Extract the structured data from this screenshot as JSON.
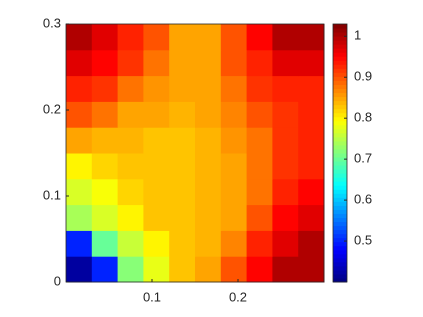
{
  "chart_data": {
    "type": "heatmap",
    "colormap": "jet",
    "xlim": [
      0,
      0.3
    ],
    "ylim": [
      0,
      0.3
    ],
    "xticks": [
      0.1,
      0.2
    ],
    "yticks": [
      0,
      0.1,
      0.2,
      0.3
    ],
    "clim": [
      0.4,
      1.03
    ],
    "cticks": [
      0.5,
      0.6,
      0.7,
      0.8,
      0.9,
      1
    ],
    "z": [
      [
        0.42,
        0.5,
        0.72,
        0.78,
        0.83,
        0.85,
        0.9,
        0.95,
        1.0,
        1.0
      ],
      [
        0.5,
        0.7,
        0.76,
        0.8,
        0.83,
        0.84,
        0.87,
        0.93,
        0.97,
        1.0
      ],
      [
        0.74,
        0.77,
        0.8,
        0.83,
        0.83,
        0.84,
        0.85,
        0.9,
        0.95,
        0.97
      ],
      [
        0.77,
        0.79,
        0.82,
        0.83,
        0.83,
        0.84,
        0.85,
        0.88,
        0.93,
        0.95
      ],
      [
        0.8,
        0.82,
        0.83,
        0.83,
        0.83,
        0.84,
        0.85,
        0.88,
        0.92,
        0.93
      ],
      [
        0.85,
        0.84,
        0.84,
        0.83,
        0.83,
        0.84,
        0.86,
        0.88,
        0.92,
        0.93
      ],
      [
        0.9,
        0.88,
        0.85,
        0.85,
        0.84,
        0.85,
        0.87,
        0.9,
        0.92,
        0.93
      ],
      [
        0.93,
        0.92,
        0.88,
        0.86,
        0.85,
        0.85,
        0.88,
        0.92,
        0.93,
        0.93
      ],
      [
        0.97,
        0.95,
        0.92,
        0.88,
        0.85,
        0.85,
        0.9,
        0.93,
        0.97,
        0.97
      ],
      [
        1.0,
        0.97,
        0.93,
        0.9,
        0.85,
        0.85,
        0.9,
        0.95,
        1.0,
        1.0
      ]
    ]
  }
}
